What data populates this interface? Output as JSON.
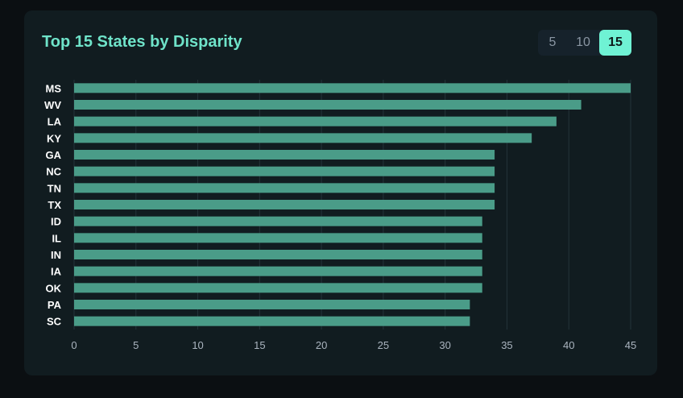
{
  "title": "Top 15 States by Disparity",
  "toggle": {
    "options": [
      "5",
      "10",
      "15"
    ],
    "selected": "15"
  },
  "colors": {
    "background": "#0b0f12",
    "card": "#111c20",
    "title": "#6fe3c9",
    "bar": "#4a9c88",
    "active_toggle": "#6ff2d4",
    "grid": "#24343a"
  },
  "chart_data": {
    "type": "bar",
    "orientation": "horizontal",
    "categories": [
      "MS",
      "WV",
      "LA",
      "KY",
      "GA",
      "NC",
      "TN",
      "TX",
      "ID",
      "IL",
      "IN",
      "IA",
      "OK",
      "PA",
      "SC"
    ],
    "values": [
      45,
      41,
      39,
      37,
      34,
      34,
      34,
      34,
      33,
      33,
      33,
      33,
      33,
      32,
      32
    ],
    "xlim": [
      0,
      45
    ],
    "xticks": [
      "0",
      "5",
      "10",
      "15",
      "20",
      "25",
      "30",
      "35",
      "40",
      "45"
    ],
    "grid": "vertical",
    "legend": "none"
  }
}
